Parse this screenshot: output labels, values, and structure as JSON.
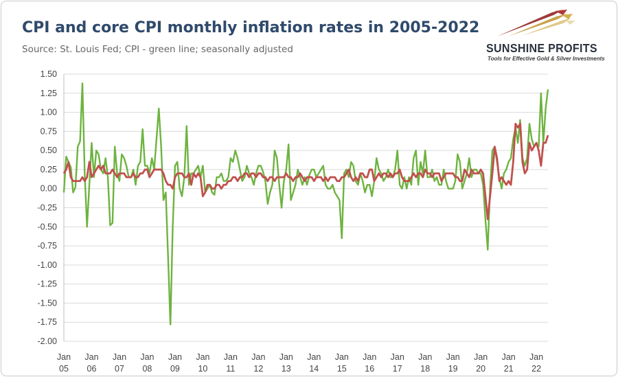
{
  "header": {
    "title": "CPI and core CPI monthly inflation rates in 2005-2022",
    "subtitle": "Source: St. Louis Fed; CPI - green line; seasonally adjusted"
  },
  "logo": {
    "name": "SUNSHINE PROFITS",
    "tagline": "Tools for Effective Gold & Silver Investments"
  },
  "colors": {
    "cpi": "#6db33f",
    "core": "#c0504d",
    "grid": "#d9d9d9",
    "title": "#2f4a6b"
  },
  "chart_data": {
    "type": "line",
    "title": "CPI and core CPI monthly inflation rates in 2005-2022",
    "xlabel": "",
    "ylabel": "",
    "ylim": [
      -2.0,
      1.5
    ],
    "yticks": [
      "1.50",
      "1.25",
      "1.00",
      "0.75",
      "0.50",
      "0.25",
      "0.00",
      "-0.25",
      "-0.50",
      "-0.75",
      "-1.00",
      "-1.25",
      "-1.50",
      "-1.75",
      "-2.00"
    ],
    "xticks": [
      {
        "m": "Jan",
        "y": "05"
      },
      {
        "m": "Jan",
        "y": "06"
      },
      {
        "m": "Jan",
        "y": "07"
      },
      {
        "m": "Jan",
        "y": "08"
      },
      {
        "m": "Jan",
        "y": "09"
      },
      {
        "m": "Jan",
        "y": "10"
      },
      {
        "m": "Jan",
        "y": "11"
      },
      {
        "m": "Jan",
        "y": "12"
      },
      {
        "m": "Jan",
        "y": "13"
      },
      {
        "m": "Jan",
        "y": "14"
      },
      {
        "m": "Jan",
        "y": "15"
      },
      {
        "m": "Jan",
        "y": "16"
      },
      {
        "m": "Jan",
        "y": "17"
      },
      {
        "m": "Jan",
        "y": "18"
      },
      {
        "m": "Jan",
        "y": "19"
      },
      {
        "m": "Jan",
        "y": "20"
      },
      {
        "m": "Jan",
        "y": "21"
      },
      {
        "m": "Jan",
        "y": "22"
      }
    ],
    "grid": true,
    "start": "2005-01",
    "series": [
      {
        "color": "#6db33f",
        "values": [
          -0.05,
          0.42,
          0.35,
          0.28,
          -0.05,
          0.02,
          0.55,
          0.62,
          1.38,
          0.2,
          -0.5,
          0.05,
          0.6,
          0.15,
          0.5,
          0.45,
          0.25,
          0.2,
          0.4,
          0.15,
          -0.48,
          -0.45,
          0.55,
          0.2,
          0.1,
          0.45,
          0.4,
          0.3,
          0.15,
          0.15,
          0.25,
          0.05,
          0.3,
          0.35,
          0.78,
          0.3,
          0.3,
          0.2,
          0.4,
          0.25,
          0.65,
          1.05,
          0.55,
          -0.15,
          -0.05,
          -0.9,
          -1.78,
          -0.5,
          0.3,
          0.35,
          0.0,
          -0.1,
          0.15,
          0.82,
          0.05,
          0.2,
          0.2,
          0.25,
          0.3,
          0.15,
          0.3,
          -0.05,
          0.0,
          0.05,
          -0.05,
          -0.08,
          0.15,
          0.15,
          0.2,
          0.1,
          0.1,
          0.15,
          0.4,
          0.35,
          0.5,
          0.4,
          0.25,
          0.1,
          0.15,
          0.3,
          0.2,
          0.15,
          0.05,
          0.2,
          0.3,
          0.3,
          0.22,
          0.1,
          -0.2,
          -0.05,
          0.05,
          0.5,
          0.4,
          0.05,
          -0.25,
          0.1,
          0.25,
          0.58,
          -0.15,
          -0.05,
          0.05,
          0.25,
          0.15,
          0.05,
          0.15,
          0.05,
          0.18,
          0.25,
          0.25,
          0.15,
          0.2,
          0.25,
          0.3,
          0.05,
          0.0,
          0.0,
          0.05,
          -0.05,
          -0.1,
          -0.15,
          -0.65,
          0.2,
          0.25,
          0.15,
          0.35,
          0.3,
          0.1,
          0.05,
          0.2,
          0.1,
          -0.05,
          0.05,
          0.05,
          -0.1,
          0.1,
          0.4,
          0.25,
          0.2,
          0.1,
          0.15,
          0.25,
          0.15,
          0.15,
          0.25,
          0.5,
          0.05,
          0.0,
          0.15,
          0.0,
          0.15,
          0.05,
          0.4,
          0.5,
          0.05,
          0.35,
          0.2,
          0.5,
          0.15,
          0.15,
          0.25,
          0.1,
          0.15,
          0.05,
          0.05,
          0.25,
          0.1,
          0.0,
          0.0,
          0.0,
          0.1,
          0.45,
          0.35,
          0.0,
          0.1,
          0.2,
          0.4,
          0.15,
          0.25,
          0.25,
          0.2,
          0.2,
          0.05,
          -0.4,
          -0.8,
          0.0,
          0.5,
          0.55,
          0.35,
          0.15,
          0.0,
          0.2,
          0.25,
          0.35,
          0.4,
          0.65,
          0.8,
          0.6,
          0.9,
          0.4,
          0.3,
          0.4,
          0.85,
          0.65,
          0.55,
          0.6,
          0.55,
          1.25,
          0.6,
          1.05,
          1.3
        ]
      },
      {
        "color": "#c0504d",
        "values": [
          0.2,
          0.25,
          0.35,
          0.15,
          0.1,
          0.1,
          0.1,
          0.1,
          0.15,
          0.1,
          0.15,
          0.35,
          0.15,
          0.2,
          0.25,
          0.3,
          0.25,
          0.3,
          0.2,
          0.2,
          0.2,
          0.25,
          0.2,
          0.15,
          0.2,
          0.2,
          0.2,
          0.15,
          0.15,
          0.15,
          0.2,
          0.15,
          0.15,
          0.2,
          0.2,
          0.25,
          0.25,
          0.15,
          0.2,
          0.25,
          0.25,
          0.25,
          0.25,
          0.2,
          0.1,
          0.05,
          0.05,
          0.0,
          0.15,
          0.2,
          0.2,
          0.2,
          0.15,
          0.15,
          0.2,
          0.05,
          0.2,
          0.15,
          0.2,
          0.15,
          -0.1,
          -0.05,
          0.05,
          0.05,
          0.0,
          0.0,
          0.05,
          0.05,
          0.0,
          0.05,
          0.05,
          0.1,
          0.1,
          0.15,
          0.15,
          0.1,
          0.15,
          0.15,
          0.2,
          0.2,
          0.15,
          0.2,
          0.2,
          0.15,
          0.2,
          0.2,
          0.15,
          0.15,
          0.1,
          0.15,
          0.15,
          0.1,
          0.15,
          0.15,
          0.15,
          0.15,
          0.2,
          0.15,
          0.15,
          0.1,
          0.15,
          0.15,
          0.2,
          0.15,
          0.1,
          0.15,
          0.15,
          0.15,
          0.1,
          0.15,
          0.15,
          0.15,
          0.1,
          0.15,
          0.1,
          0.15,
          0.15,
          0.15,
          0.1,
          0.1,
          0.15,
          0.15,
          0.2,
          0.25,
          0.15,
          0.1,
          0.15,
          0.1,
          0.2,
          0.2,
          0.15,
          0.15,
          0.25,
          0.25,
          0.1,
          0.15,
          0.2,
          0.15,
          0.2,
          0.2,
          0.15,
          0.2,
          0.15,
          0.2,
          0.2,
          0.25,
          0.15,
          0.1,
          0.1,
          0.1,
          0.15,
          0.2,
          0.15,
          0.2,
          0.2,
          0.15,
          0.25,
          0.2,
          0.2,
          0.15,
          0.2,
          0.2,
          0.2,
          0.1,
          0.15,
          0.2,
          0.2,
          0.2,
          0.2,
          0.15,
          0.15,
          0.1,
          0.1,
          0.25,
          0.2,
          0.15,
          0.25,
          0.2,
          0.2,
          0.2,
          0.25,
          0.2,
          -0.1,
          -0.4,
          -0.1,
          0.2,
          0.55,
          0.4,
          0.1,
          0.15,
          0.1,
          0.05,
          0.1,
          0.05,
          0.35,
          0.85,
          0.8,
          0.85,
          0.35,
          0.2,
          0.25,
          0.6,
          0.5,
          0.55,
          0.6,
          0.5,
          0.3,
          0.6,
          0.6,
          0.7
        ]
      }
    ]
  }
}
